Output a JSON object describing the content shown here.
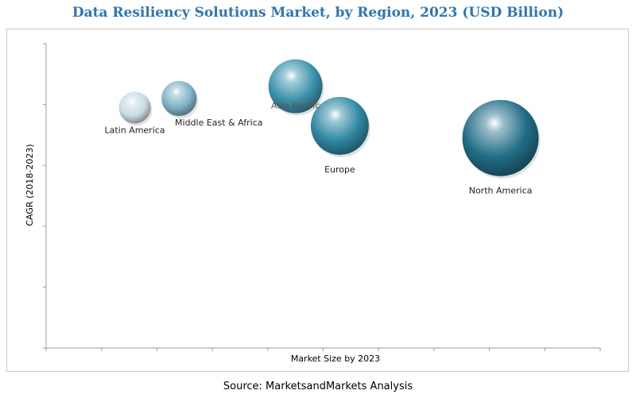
{
  "chart_data": {
    "type": "bubble",
    "title": "Data Resiliency Solutions Market, by Region, 2023 (USD Billion)",
    "xlabel": "Market Size by 2023",
    "ylabel": "CAGR (2018-2023)",
    "xlim": [
      0,
      10
    ],
    "ylim": [
      0,
      10
    ],
    "x_tick_count": 10,
    "y_tick_count": 5,
    "grid": false,
    "legend": "none",
    "series": [
      {
        "name": "Latin America",
        "x": 1.6,
        "y": 7.9,
        "size": 0.45,
        "color": "#c9dbe4"
      },
      {
        "name": "Middle East & Africa",
        "x": 2.4,
        "y": 8.2,
        "size": 0.55,
        "color": "#7fb3c6"
      },
      {
        "name": "Asia Pacific",
        "x": 4.5,
        "y": 8.6,
        "size": 1.3,
        "color": "#3d93ad"
      },
      {
        "name": "Europe",
        "x": 5.3,
        "y": 7.3,
        "size": 1.5,
        "color": "#2f88a3"
      },
      {
        "name": "North America",
        "x": 8.2,
        "y": 6.9,
        "size": 2.6,
        "color": "#216d86"
      }
    ]
  },
  "source": "Source: MarketsandMarkets Analysis"
}
